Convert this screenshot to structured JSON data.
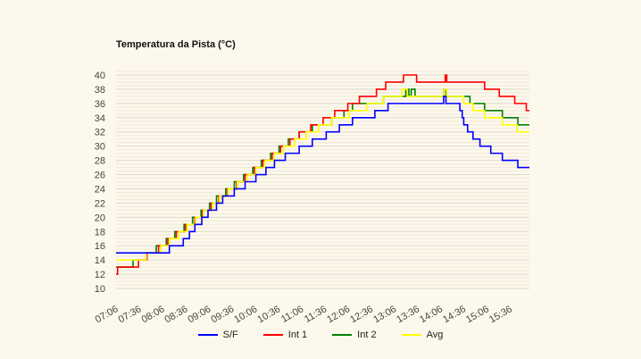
{
  "chart_data": {
    "type": "line",
    "title": "Temperatura da Pista (°C)",
    "xlabel": "",
    "ylabel": "",
    "x_unit": "minutes after 07:06",
    "xlim": [
      0,
      535
    ],
    "ylim": [
      10,
      40
    ],
    "yticks": [
      10,
      12,
      14,
      16,
      18,
      20,
      22,
      24,
      26,
      28,
      30,
      32,
      34,
      36,
      38,
      40
    ],
    "xtick_labels": [
      "07:06",
      "07:36",
      "08:06",
      "08:36",
      "09:06",
      "09:36",
      "10:06",
      "10:36",
      "11:06",
      "11:36",
      "12:06",
      "12:36",
      "13:06",
      "13:36",
      "14:06",
      "14:36",
      "15:06",
      "15:36"
    ],
    "grid": true,
    "step": true,
    "legend_position": "bottom-center",
    "series": [
      {
        "name": "S/F",
        "color": "#0000ff",
        "points": [
          [
            0,
            15
          ],
          [
            69,
            16
          ],
          [
            87,
            17
          ],
          [
            95,
            18
          ],
          [
            102,
            19
          ],
          [
            111,
            20
          ],
          [
            119,
            21
          ],
          [
            130,
            22
          ],
          [
            138,
            23
          ],
          [
            153,
            24
          ],
          [
            167,
            25
          ],
          [
            181,
            26
          ],
          [
            194,
            27
          ],
          [
            205,
            28
          ],
          [
            219,
            29
          ],
          [
            237,
            30
          ],
          [
            254,
            31
          ],
          [
            272,
            32
          ],
          [
            289,
            33
          ],
          [
            306,
            34
          ],
          [
            335,
            35
          ],
          [
            352,
            36
          ],
          [
            424,
            37
          ],
          [
            427,
            36
          ],
          [
            445,
            35
          ],
          [
            448,
            34
          ],
          [
            450,
            33
          ],
          [
            455,
            32
          ],
          [
            462,
            31
          ],
          [
            471,
            30
          ],
          [
            485,
            29
          ],
          [
            500,
            28
          ],
          [
            520,
            27
          ],
          [
            535,
            27
          ]
        ]
      },
      {
        "name": "Int 1",
        "color": "#ff0000",
        "points": [
          [
            0,
            12
          ],
          [
            2,
            13
          ],
          [
            29,
            14
          ],
          [
            40,
            15
          ],
          [
            55,
            16
          ],
          [
            67,
            17
          ],
          [
            78,
            18
          ],
          [
            90,
            19
          ],
          [
            102,
            20
          ],
          [
            112,
            21
          ],
          [
            123,
            22
          ],
          [
            133,
            23
          ],
          [
            144,
            24
          ],
          [
            156,
            25
          ],
          [
            167,
            26
          ],
          [
            179,
            27
          ],
          [
            190,
            28
          ],
          [
            202,
            29
          ],
          [
            213,
            30
          ],
          [
            225,
            31
          ],
          [
            237,
            32
          ],
          [
            252,
            33
          ],
          [
            268,
            34
          ],
          [
            283,
            35
          ],
          [
            300,
            36
          ],
          [
            315,
            37
          ],
          [
            337,
            38
          ],
          [
            349,
            39
          ],
          [
            372,
            40
          ],
          [
            389,
            39
          ],
          [
            426,
            40
          ],
          [
            428,
            39
          ],
          [
            477,
            38
          ],
          [
            496,
            37
          ],
          [
            516,
            36
          ],
          [
            531,
            35
          ],
          [
            535,
            35
          ]
        ]
      },
      {
        "name": "Int 2",
        "color": "#008000",
        "points": [
          [
            0,
            13
          ],
          [
            22,
            14
          ],
          [
            39,
            15
          ],
          [
            52,
            16
          ],
          [
            65,
            17
          ],
          [
            76,
            18
          ],
          [
            88,
            19
          ],
          [
            99,
            20
          ],
          [
            110,
            21
          ],
          [
            121,
            22
          ],
          [
            130,
            23
          ],
          [
            142,
            24
          ],
          [
            153,
            25
          ],
          [
            165,
            26
          ],
          [
            177,
            27
          ],
          [
            188,
            28
          ],
          [
            200,
            29
          ],
          [
            211,
            30
          ],
          [
            223,
            31
          ],
          [
            237,
            32
          ],
          [
            254,
            33
          ],
          [
            279,
            34
          ],
          [
            295,
            35
          ],
          [
            306,
            36
          ],
          [
            346,
            37
          ],
          [
            375,
            38
          ],
          [
            379,
            37
          ],
          [
            382,
            38
          ],
          [
            387,
            37
          ],
          [
            424,
            38
          ],
          [
            427,
            37
          ],
          [
            458,
            36
          ],
          [
            477,
            35
          ],
          [
            500,
            34
          ],
          [
            520,
            33
          ],
          [
            535,
            33
          ]
        ]
      },
      {
        "name": "Avg",
        "color": "#ffff00",
        "points": [
          [
            0,
            14
          ],
          [
            39,
            15
          ],
          [
            58,
            16
          ],
          [
            69,
            17
          ],
          [
            81,
            18
          ],
          [
            92,
            19
          ],
          [
            103,
            20
          ],
          [
            113,
            21
          ],
          [
            125,
            22
          ],
          [
            134,
            23
          ],
          [
            145,
            24
          ],
          [
            157,
            25
          ],
          [
            170,
            26
          ],
          [
            181,
            27
          ],
          [
            193,
            28
          ],
          [
            205,
            29
          ],
          [
            217,
            30
          ],
          [
            231,
            31
          ],
          [
            246,
            32
          ],
          [
            262,
            33
          ],
          [
            279,
            34
          ],
          [
            302,
            35
          ],
          [
            325,
            36
          ],
          [
            346,
            37
          ],
          [
            370,
            38
          ],
          [
            377,
            37
          ],
          [
            424,
            38
          ],
          [
            428,
            37
          ],
          [
            450,
            36
          ],
          [
            462,
            35
          ],
          [
            477,
            34
          ],
          [
            500,
            33
          ],
          [
            519,
            32
          ],
          [
            535,
            32
          ]
        ]
      }
    ]
  }
}
